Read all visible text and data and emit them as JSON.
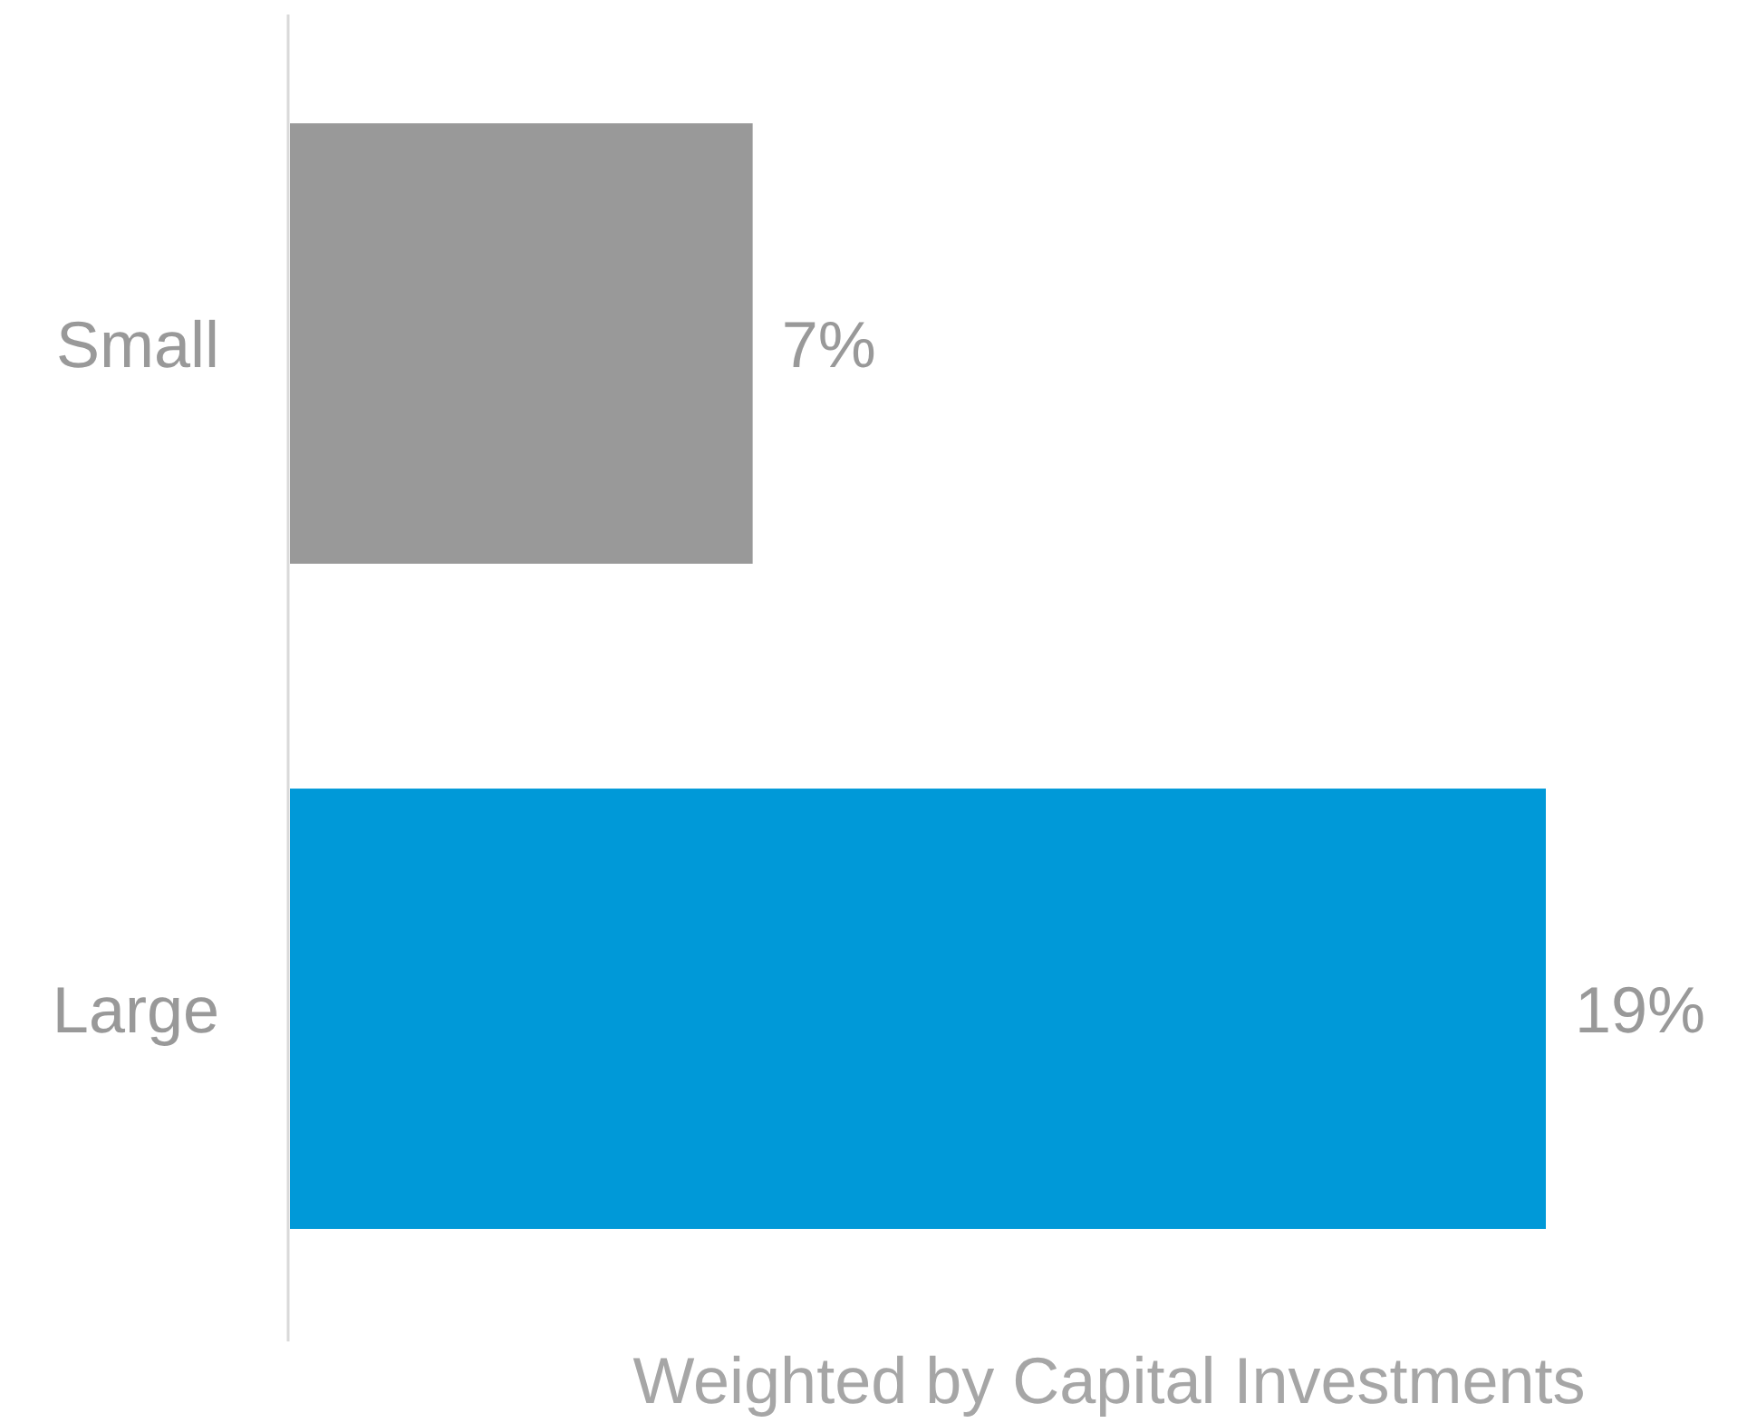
{
  "chart_data": {
    "type": "bar",
    "orientation": "horizontal",
    "relative": false,
    "categories": [
      "Small",
      "Large"
    ],
    "values": [
      7,
      19
    ],
    "colors": [
      "#999999",
      "#0099d8"
    ],
    "value_labels": [
      "7%",
      "19%"
    ],
    "xlabel": "Weighted by Capital Investments"
  }
}
